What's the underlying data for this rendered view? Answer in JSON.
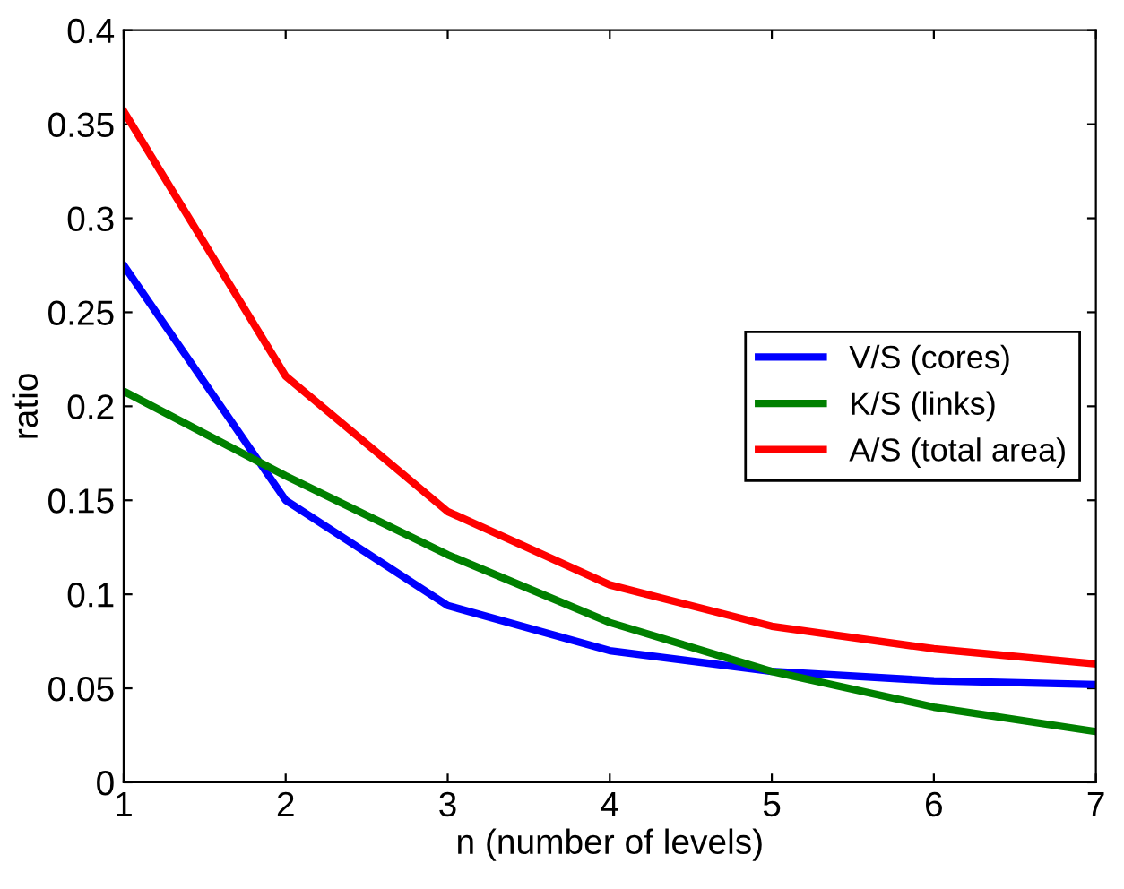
{
  "chart_data": {
    "type": "line",
    "xlabel": "n (number of levels)",
    "ylabel": "ratio",
    "x": [
      1,
      2,
      3,
      4,
      5,
      6,
      7
    ],
    "series": [
      {
        "name": "V/S (cores)",
        "color": "#0000ff",
        "values": [
          0.275,
          0.15,
          0.094,
          0.07,
          0.059,
          0.054,
          0.052
        ]
      },
      {
        "name": "K/S (links)",
        "color": "#008000",
        "values": [
          0.208,
          0.163,
          0.121,
          0.085,
          0.059,
          0.04,
          0.027
        ]
      },
      {
        "name": "A/S (total area)",
        "color": "#ff0000",
        "values": [
          0.357,
          0.216,
          0.144,
          0.105,
          0.083,
          0.071,
          0.063
        ]
      }
    ],
    "xlim": [
      1,
      7
    ],
    "xticks": [
      1,
      2,
      3,
      4,
      5,
      6,
      7
    ],
    "ylim": [
      0,
      0.4
    ],
    "yticks": [
      0,
      0.05,
      0.1,
      0.15,
      0.2,
      0.25,
      0.3,
      0.35,
      0.4
    ],
    "grid": false,
    "legend": "center right",
    "marker": "none",
    "line_style": "solid"
  }
}
